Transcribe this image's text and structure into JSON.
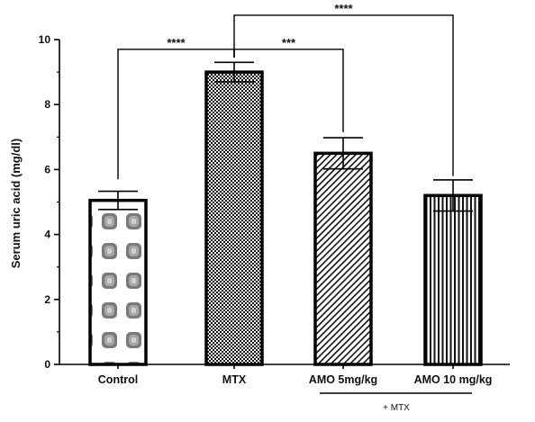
{
  "chart_data": {
    "type": "bar",
    "title": "",
    "xlabel": "",
    "ylabel": "Serum uric acid (mg/dl)",
    "ylim": [
      0,
      10
    ],
    "yticks": [
      0,
      2,
      4,
      6,
      8,
      10
    ],
    "categories": [
      "Control",
      "MTX",
      "AMO 5mg/kg",
      "AMO 10 mg/kg"
    ],
    "values": [
      5.05,
      9.0,
      6.5,
      5.2
    ],
    "errors": [
      0.28,
      0.3,
      0.48,
      0.48
    ],
    "patterns": [
      "dotted-grid",
      "checkerboard",
      "diagonal-hatch",
      "vertical-lines"
    ],
    "grid": false,
    "group_note": "+ MTX",
    "significance": [
      {
        "from": "Control",
        "to": "MTX",
        "label": "****"
      },
      {
        "from": "MTX",
        "to": "AMO 5mg/kg",
        "label": "***"
      },
      {
        "from": "MTX",
        "to": "AMO 10 mg/kg",
        "label": "****"
      }
    ]
  }
}
